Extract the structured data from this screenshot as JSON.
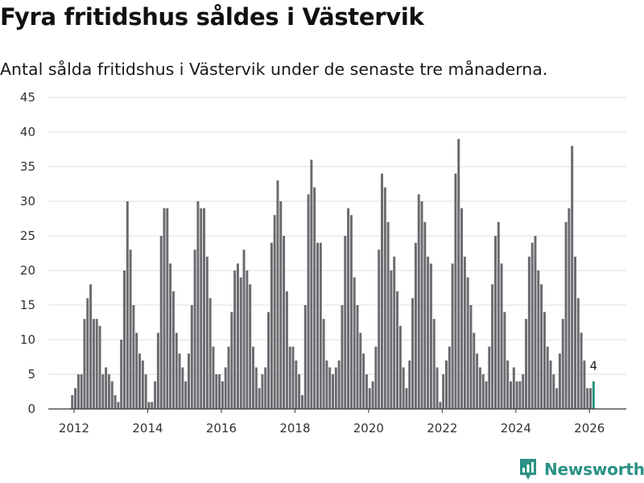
{
  "header": {
    "title": "Fyra fritidshus såldes i Västervik",
    "subtitle": "Antal sålda fritidshus i Västervik under de senaste tre månaderna."
  },
  "brand": {
    "name": "Newsworthy",
    "icon": "newsworthy-logo-icon"
  },
  "colors": {
    "bar": "#6b6a6f",
    "highlight": "#2a9184",
    "grid": "#dddddd",
    "axis": "#333333"
  },
  "chart_data": {
    "type": "bar",
    "title": "Fyra fritidshus såldes i Västervik",
    "subtitle": "Antal sålda fritidshus i Västervik under de senaste tre månaderna.",
    "xlabel": "",
    "ylabel": "",
    "ylim": [
      0,
      45
    ],
    "yticks": [
      0,
      5,
      10,
      15,
      20,
      25,
      30,
      35,
      40,
      45
    ],
    "xticks": [
      2012,
      2014,
      2016,
      2018,
      2020,
      2022,
      2024,
      2026
    ],
    "xlim": [
      2011.3,
      2027.0
    ],
    "start": 2011.95,
    "step": 0.0833,
    "grid": true,
    "legend": "none",
    "highlight_last": true,
    "last_label": "4",
    "values": [
      2,
      3,
      5,
      5,
      13,
      16,
      18,
      13,
      13,
      12,
      5,
      6,
      5,
      4,
      2,
      1,
      10,
      20,
      30,
      23,
      15,
      11,
      8,
      7,
      5,
      1,
      1,
      4,
      11,
      25,
      29,
      29,
      21,
      17,
      11,
      8,
      6,
      4,
      8,
      15,
      23,
      30,
      29,
      29,
      22,
      16,
      9,
      5,
      5,
      4,
      6,
      9,
      14,
      20,
      21,
      19,
      23,
      20,
      18,
      9,
      6,
      3,
      5,
      6,
      14,
      24,
      28,
      33,
      30,
      25,
      17,
      9,
      9,
      7,
      5,
      2,
      15,
      31,
      36,
      32,
      24,
      24,
      13,
      7,
      6,
      5,
      6,
      7,
      15,
      25,
      29,
      28,
      19,
      15,
      11,
      8,
      5,
      3,
      4,
      9,
      23,
      34,
      32,
      27,
      20,
      22,
      17,
      12,
      6,
      3,
      7,
      16,
      24,
      31,
      30,
      27,
      22,
      21,
      13,
      6,
      1,
      5,
      7,
      9,
      21,
      34,
      39,
      29,
      22,
      19,
      15,
      11,
      8,
      6,
      5,
      4,
      9,
      18,
      25,
      27,
      21,
      14,
      7,
      4,
      6,
      4,
      4,
      5,
      13,
      22,
      24,
      25,
      20,
      18,
      14,
      9,
      7,
      5,
      3,
      8,
      13,
      27,
      29,
      38,
      22,
      16,
      11,
      7,
      3,
      3,
      4
    ]
  }
}
